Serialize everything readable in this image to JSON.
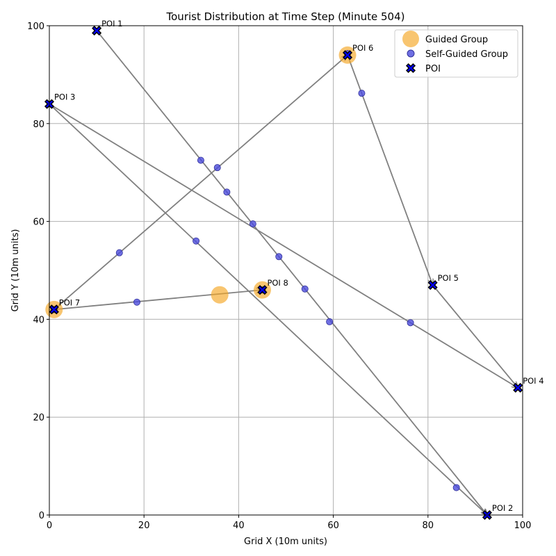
{
  "chart_data": {
    "type": "scatter",
    "title": "Tourist Distribution at Time Step (Minute 504)",
    "xlabel": "Grid X (10m units)",
    "ylabel": "Grid Y (10m units)",
    "xlim": [
      0,
      100
    ],
    "ylim": [
      0,
      100
    ],
    "xticks": [
      0,
      20,
      40,
      60,
      80,
      100
    ],
    "yticks": [
      0,
      20,
      40,
      60,
      80,
      100
    ],
    "grid": true,
    "legend_position": "top-right",
    "legend": [
      {
        "key": "guided",
        "label": "Guided Group"
      },
      {
        "key": "self",
        "label": "Self-Guided Group"
      },
      {
        "key": "poi",
        "label": "POI"
      }
    ],
    "colors": {
      "guided": "#f5a623",
      "self": "#4b4bdc",
      "poi_face": "#0000ff",
      "poi_edge": "#000000",
      "route": "#808080",
      "grid": "#b0b0b0"
    },
    "pois": [
      {
        "label": "POI 1",
        "x": 10,
        "y": 99
      },
      {
        "label": "POI 2",
        "x": 92.5,
        "y": 0
      },
      {
        "label": "POI 3",
        "x": 0,
        "y": 84
      },
      {
        "label": "POI 4",
        "x": 99,
        "y": 26
      },
      {
        "label": "POI 5",
        "x": 81,
        "y": 47
      },
      {
        "label": "POI 6",
        "x": 63,
        "y": 94
      },
      {
        "label": "POI 7",
        "x": 1,
        "y": 42
      },
      {
        "label": "POI 8",
        "x": 45,
        "y": 46
      }
    ],
    "routes": [
      {
        "from": [
          10,
          99
        ],
        "to": [
          92.5,
          0
        ]
      },
      {
        "from": [
          0,
          84
        ],
        "to": [
          92.5,
          0
        ]
      },
      {
        "from": [
          0,
          84
        ],
        "to": [
          99,
          26
        ]
      },
      {
        "from": [
          1,
          42
        ],
        "to": [
          63,
          94
        ]
      },
      {
        "from": [
          63,
          94
        ],
        "to": [
          81,
          47
        ]
      },
      {
        "from": [
          81,
          47
        ],
        "to": [
          99,
          26
        ]
      },
      {
        "from": [
          1,
          42
        ],
        "to": [
          45,
          46
        ]
      }
    ],
    "guided_groups": [
      {
        "x": 1,
        "y": 42
      },
      {
        "x": 36,
        "y": 45
      },
      {
        "x": 45,
        "y": 46
      },
      {
        "x": 63,
        "y": 94
      }
    ],
    "self_guided_groups": [
      {
        "x": 32,
        "y": 72.5
      },
      {
        "x": 35.5,
        "y": 71
      },
      {
        "x": 37.5,
        "y": 66
      },
      {
        "x": 43,
        "y": 59.5
      },
      {
        "x": 48.5,
        "y": 52.8
      },
      {
        "x": 54,
        "y": 46.2
      },
      {
        "x": 59.2,
        "y": 39.5
      },
      {
        "x": 86,
        "y": 5.6
      },
      {
        "x": 31,
        "y": 56
      },
      {
        "x": 76.3,
        "y": 39.3
      },
      {
        "x": 14.8,
        "y": 53.6
      },
      {
        "x": 66,
        "y": 86.2
      },
      {
        "x": 18.5,
        "y": 43.5
      },
      {
        "x": 45,
        "y": 46
      },
      {
        "x": 1,
        "y": 42
      },
      {
        "x": 63,
        "y": 94.3
      }
    ]
  }
}
